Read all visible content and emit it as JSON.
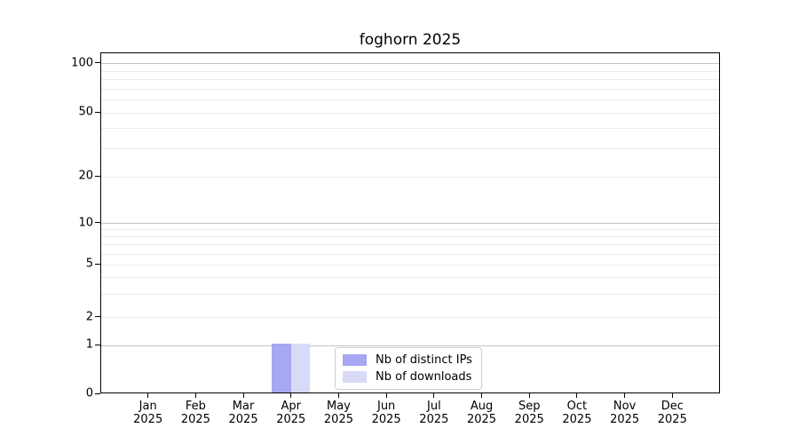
{
  "chart_data": {
    "type": "bar",
    "title": "foghorn 2025",
    "categories": [
      "Jan 2025",
      "Feb 2025",
      "Mar 2025",
      "Apr 2025",
      "May 2025",
      "Jun 2025",
      "Jul 2025",
      "Aug 2025",
      "Sep 2025",
      "Oct 2025",
      "Nov 2025",
      "Dec 2025"
    ],
    "series": [
      {
        "name": "Nb of distinct IPs",
        "color": "#a7a7f3",
        "values": [
          0,
          0,
          0,
          1,
          0,
          0,
          0,
          0,
          0,
          0,
          0,
          0
        ]
      },
      {
        "name": "Nb of downloads",
        "color": "#d9d9f8",
        "values": [
          0,
          0,
          0,
          1,
          0,
          0,
          0,
          0,
          0,
          0,
          0,
          0
        ]
      }
    ],
    "xlabel": "",
    "ylabel": "",
    "y_scale": "asinh",
    "ylim": [
      0,
      100
    ],
    "y_ticks": [
      0,
      1,
      2,
      5,
      10,
      20,
      50,
      100
    ],
    "y_minor_ticks": [
      3,
      4,
      6,
      7,
      8,
      9,
      30,
      40,
      60,
      70,
      80,
      90
    ],
    "grid": "horizontal",
    "legend_position": "lower center",
    "frame_color": "#000000"
  }
}
